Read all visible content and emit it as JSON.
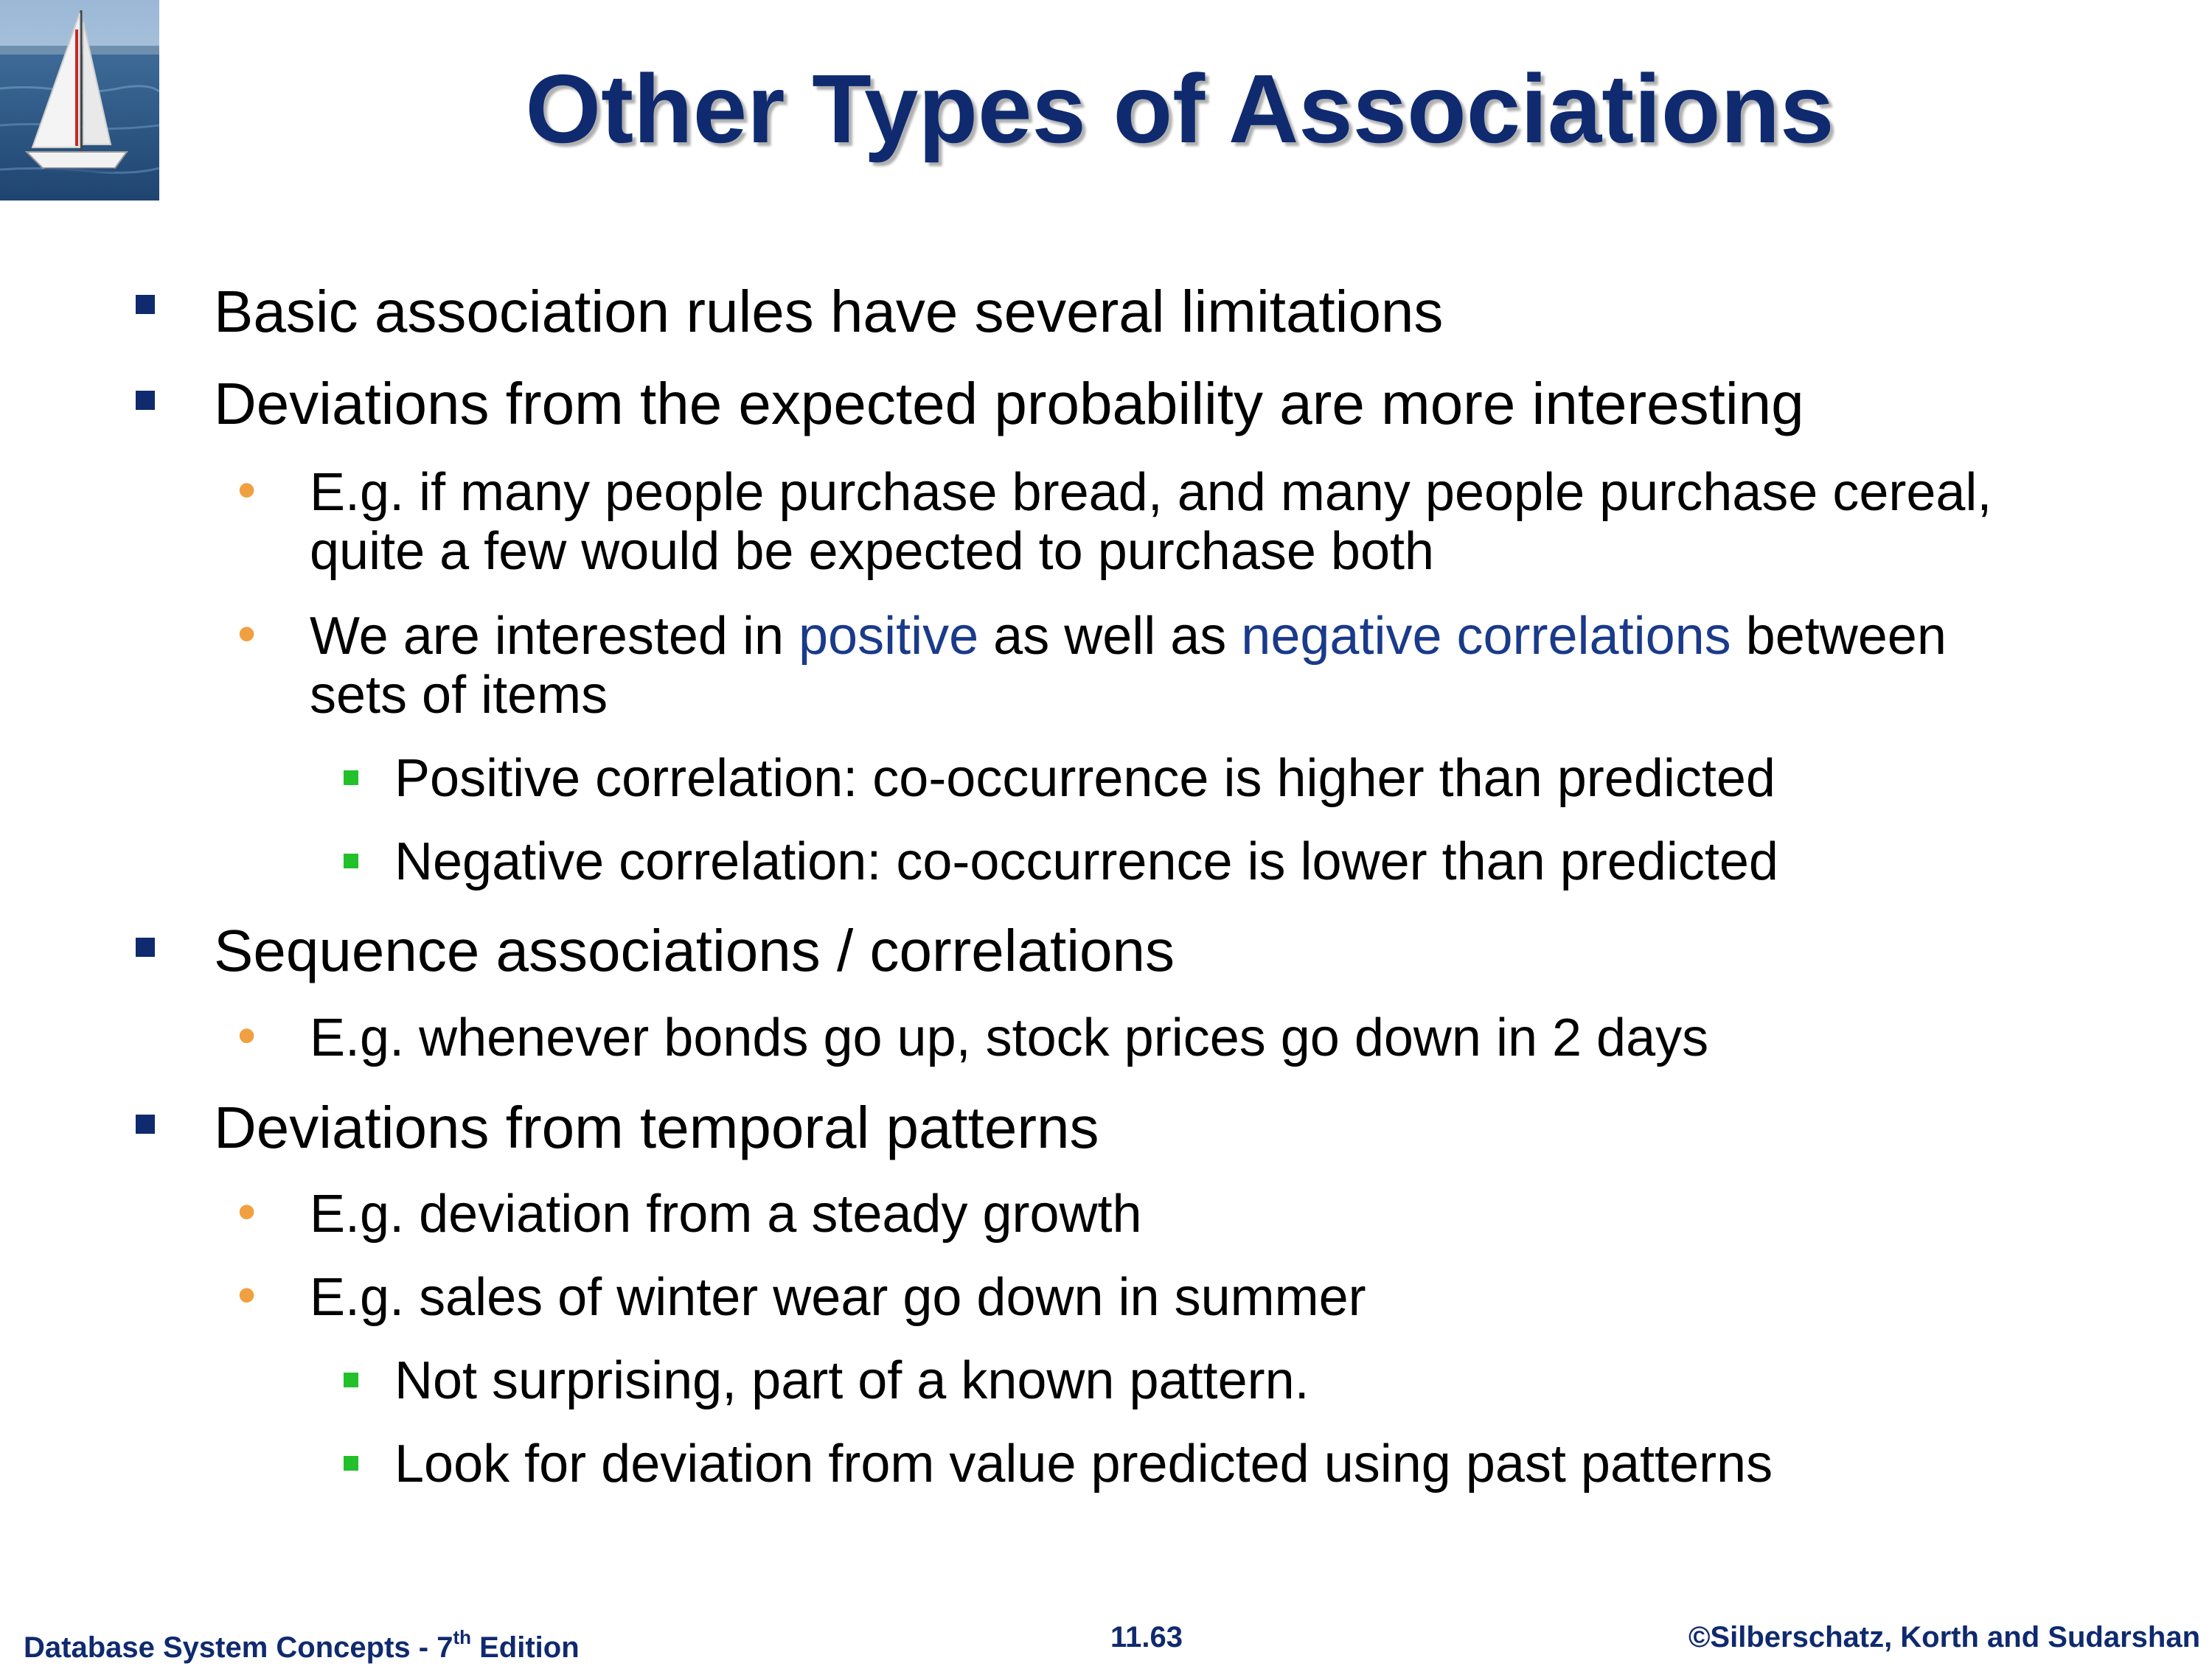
{
  "slide": {
    "title": "Other Types of Associations"
  },
  "content": {
    "b1": "Basic association rules have several limitations",
    "b2": "Deviations from the expected probability are more interesting",
    "b2_1_line1": "E.g. if many people purchase bread, and many people purchase cereal,",
    "b2_1_line2": "quite a few would be expected to purchase both",
    "b2_2_part1": "We are interested in ",
    "b2_2_positive": "positive",
    "b2_2_part2": " as well as ",
    "b2_2_negative": "negative correlations",
    "b2_2_part3": " between",
    "b2_2_line2": "sets of items",
    "b2_2_1": "Positive correlation: co-occurrence is higher than predicted",
    "b2_2_2": "Negative correlation: co-occurrence is lower than predicted",
    "b3": "Sequence associations / correlations",
    "b3_1": "E.g. whenever bonds go up, stock prices go down in 2 days",
    "b4": "Deviations from temporal patterns",
    "b4_1": "E.g. deviation from a steady growth",
    "b4_2": "E.g. sales of winter wear go down in summer",
    "b4_2_1": "Not surprising, part of a known pattern.",
    "b4_2_2": "Look for deviation from value predicted using past patterns"
  },
  "footer": {
    "left_prefix": "Database System Concepts - 7",
    "left_sup": "th",
    "left_suffix": " Edition",
    "page_number": "11.63",
    "copyright": "©Silberschatz, Korth and Sudarshan"
  },
  "colors": {
    "title": "#0f2a6e",
    "level1_bullet": "#0f2a6e",
    "level2_bullet": "#f0a040",
    "level3_bullet": "#22c02a",
    "highlight": "#1a3a8a"
  },
  "icons": {
    "logo": "sailboat-logo"
  }
}
